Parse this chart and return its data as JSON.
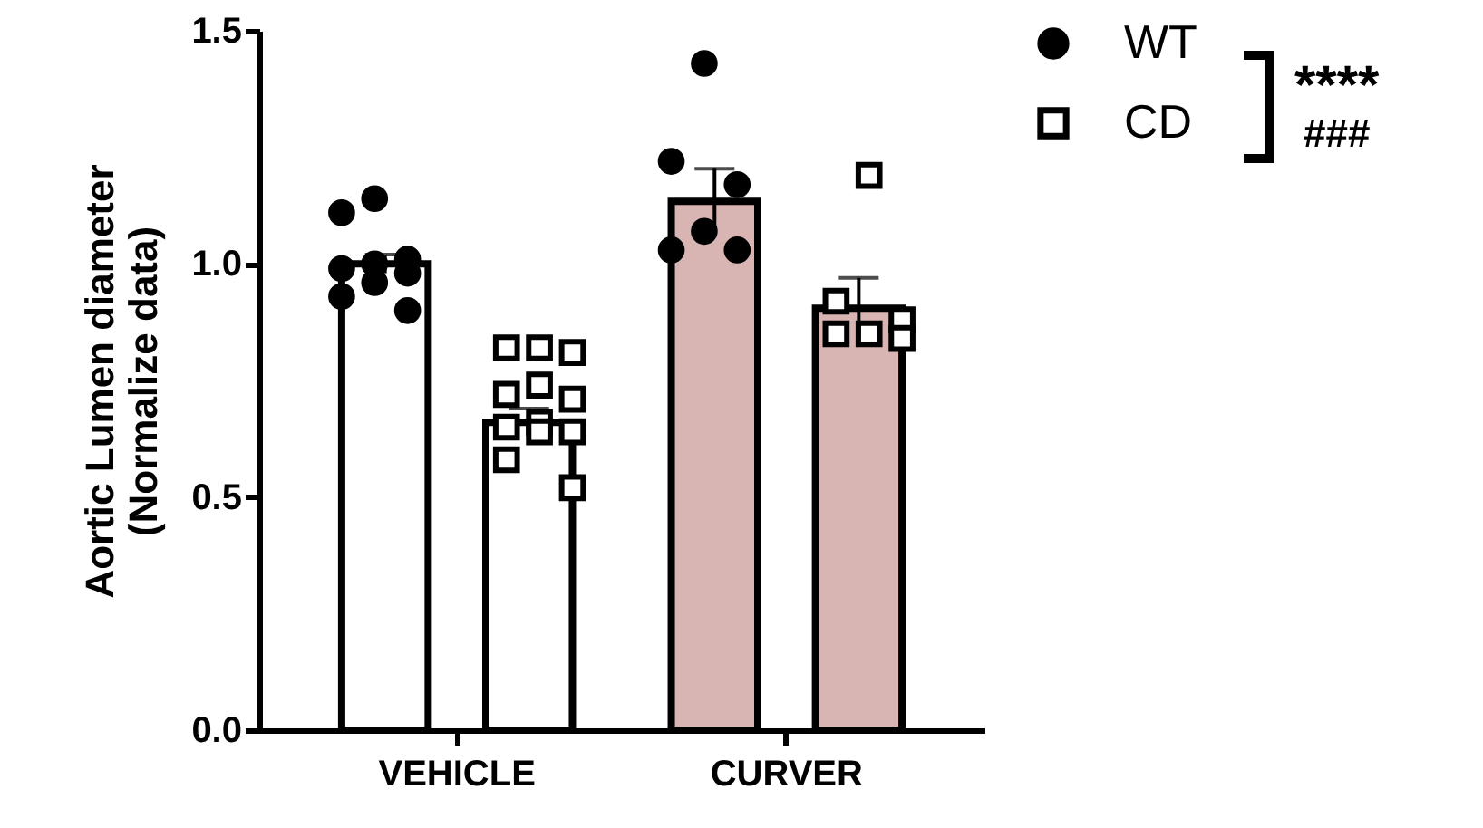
{
  "chart_data": {
    "type": "bar",
    "ylabel": "Aortic Lumen diameter\n(Normalize data)",
    "categories": [
      "VEHICLE",
      "CURVER"
    ],
    "series": [
      {
        "colors": [
          "#ffffff",
          "#d8b4b2"
        ],
        "values": [
          1.0,
          1.134
        ],
        "errors": [
          0.02,
          0.07
        ]
      },
      {
        "colors": [
          "#ffffff",
          "#d8b4b2"
        ],
        "values": [
          0.66,
          0.905
        ],
        "errors": [
          0.03,
          0.065
        ]
      },
      {
        "type": "scatter",
        "name": "WT",
        "color": "#000000",
        "marker": "circle",
        "x": [
          "VEHICLE",
          "VEHICLE",
          "VEHICLE",
          "VEHICLE",
          "VEHICLE",
          "VEHICLE",
          "VEHICLE",
          "VEHICLE",
          "VEHICLE",
          "CURVER",
          "CURVER",
          "CURVER",
          "CURVER",
          "CURVER",
          "CURVER"
        ],
        "values": [
          1.14,
          1.11,
          1.01,
          1.0,
          0.99,
          0.98,
          0.96,
          0.93,
          0.9,
          1.43,
          1.22,
          1.17,
          1.07,
          1.03,
          1.03
        ]
      },
      {
        "type": "scatter",
        "name": "CD",
        "color": "#000000",
        "marker": "square",
        "x": [
          "VEHICLE",
          "VEHICLE",
          "VEHICLE",
          "VEHICLE",
          "VEHICLE",
          "VEHICLE",
          "VEHICLE",
          "VEHICLE",
          "VEHICLE",
          "VEHICLE",
          "VEHICLE",
          "VEHICLE",
          "CURVER",
          "CURVER",
          "CURVER",
          "CURVER",
          "CURVER",
          "CURVER"
        ],
        "values": [
          0.82,
          0.82,
          0.81,
          0.74,
          0.72,
          0.71,
          0.66,
          0.65,
          0.64,
          0.64,
          0.58,
          0.52,
          1.19,
          0.92,
          0.88,
          0.85,
          0.85,
          0.84
        ]
      }
    ],
    "ylim": [
      0,
      1.5
    ],
    "yticks": [
      {
        "value": 0,
        "label": "0.0"
      },
      0.5,
      {
        "value": 1,
        "label": "1.0"
      },
      1.5
    ],
    "legend": "top right",
    "annotations": [
      "****",
      "###"
    ]
  }
}
